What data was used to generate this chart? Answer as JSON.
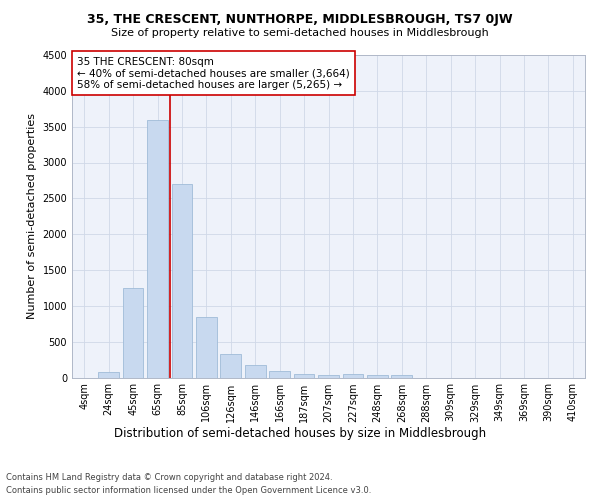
{
  "title": "35, THE CRESCENT, NUNTHORPE, MIDDLESBROUGH, TS7 0JW",
  "subtitle": "Size of property relative to semi-detached houses in Middlesbrough",
  "xlabel": "Distribution of semi-detached houses by size in Middlesbrough",
  "ylabel": "Number of semi-detached properties",
  "bar_color": "#c8d9ef",
  "bar_edge_color": "#a0bcd8",
  "categories": [
    "4sqm",
    "24sqm",
    "45sqm",
    "65sqm",
    "85sqm",
    "106sqm",
    "126sqm",
    "146sqm",
    "166sqm",
    "187sqm",
    "207sqm",
    "227sqm",
    "248sqm",
    "268sqm",
    "288sqm",
    "309sqm",
    "329sqm",
    "349sqm",
    "369sqm",
    "390sqm",
    "410sqm"
  ],
  "values": [
    0,
    80,
    1250,
    3600,
    2700,
    850,
    330,
    170,
    90,
    55,
    30,
    50,
    40,
    30,
    0,
    0,
    0,
    0,
    0,
    0,
    0
  ],
  "property_line_color": "#cc0000",
  "property_line_x": 3.5,
  "annotation_text": "35 THE CRESCENT: 80sqm\n← 40% of semi-detached houses are smaller (3,664)\n58% of semi-detached houses are larger (5,265) →",
  "annotation_box_color": "#ffffff",
  "annotation_box_edge_color": "#cc0000",
  "ylim": [
    0,
    4500
  ],
  "yticks": [
    0,
    500,
    1000,
    1500,
    2000,
    2500,
    3000,
    3500,
    4000,
    4500
  ],
  "footer_line1": "Contains HM Land Registry data © Crown copyright and database right 2024.",
  "footer_line2": "Contains public sector information licensed under the Open Government Licence v3.0.",
  "grid_color": "#d0d8e8",
  "background_color": "#eef2fa",
  "title_fontsize": 9,
  "subtitle_fontsize": 8,
  "axis_label_fontsize": 8,
  "tick_fontsize": 7,
  "annotation_fontsize": 7.5,
  "footer_fontsize": 6
}
